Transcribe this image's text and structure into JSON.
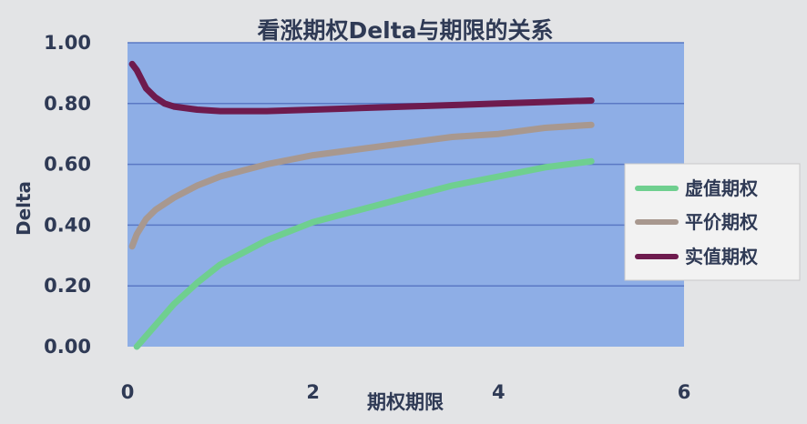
{
  "chart_data": {
    "type": "line",
    "title": "看涨期权Delta与期限的关系",
    "xlabel": "期权期限",
    "ylabel": "Delta",
    "xlim": [
      0,
      6
    ],
    "ylim": [
      0,
      1
    ],
    "x_ticks": [
      "0",
      "2",
      "4",
      "6"
    ],
    "y_ticks": [
      "0.00",
      "0.20",
      "0.40",
      "0.60",
      "0.80",
      "1.00"
    ],
    "grid": true,
    "legend_position": "right",
    "colors": {
      "plot_background": "#8eaee6",
      "gridline": "#5a78c4",
      "page_background": "#e3e4e6",
      "text": "#2f3a55"
    },
    "series": [
      {
        "name": "虚值期权",
        "color": "#6fcf8f",
        "x": [
          0.1,
          0.3,
          0.5,
          0.75,
          1.0,
          1.25,
          1.5,
          1.75,
          2.0,
          2.5,
          3.0,
          3.5,
          4.0,
          4.5,
          5.0
        ],
        "y": [
          0.0,
          0.07,
          0.14,
          0.21,
          0.27,
          0.31,
          0.35,
          0.38,
          0.41,
          0.45,
          0.49,
          0.53,
          0.56,
          0.59,
          0.61
        ]
      },
      {
        "name": "平价期权",
        "color": "#a8988f",
        "x": [
          0.05,
          0.1,
          0.2,
          0.3,
          0.5,
          0.75,
          1.0,
          1.25,
          1.5,
          2.0,
          2.5,
          3.0,
          3.5,
          4.0,
          4.5,
          5.0
        ],
        "y": [
          0.33,
          0.37,
          0.42,
          0.45,
          0.49,
          0.53,
          0.56,
          0.58,
          0.6,
          0.63,
          0.65,
          0.67,
          0.69,
          0.7,
          0.72,
          0.73
        ]
      },
      {
        "name": "实值期权",
        "color": "#6e1b4e",
        "x": [
          0.05,
          0.1,
          0.15,
          0.2,
          0.3,
          0.4,
          0.5,
          0.75,
          1.0,
          1.5,
          2.0,
          2.5,
          3.0,
          3.5,
          4.0,
          4.5,
          5.0
        ],
        "y": [
          0.93,
          0.91,
          0.88,
          0.85,
          0.82,
          0.8,
          0.79,
          0.78,
          0.775,
          0.775,
          0.78,
          0.785,
          0.79,
          0.795,
          0.8,
          0.805,
          0.81
        ]
      }
    ]
  }
}
